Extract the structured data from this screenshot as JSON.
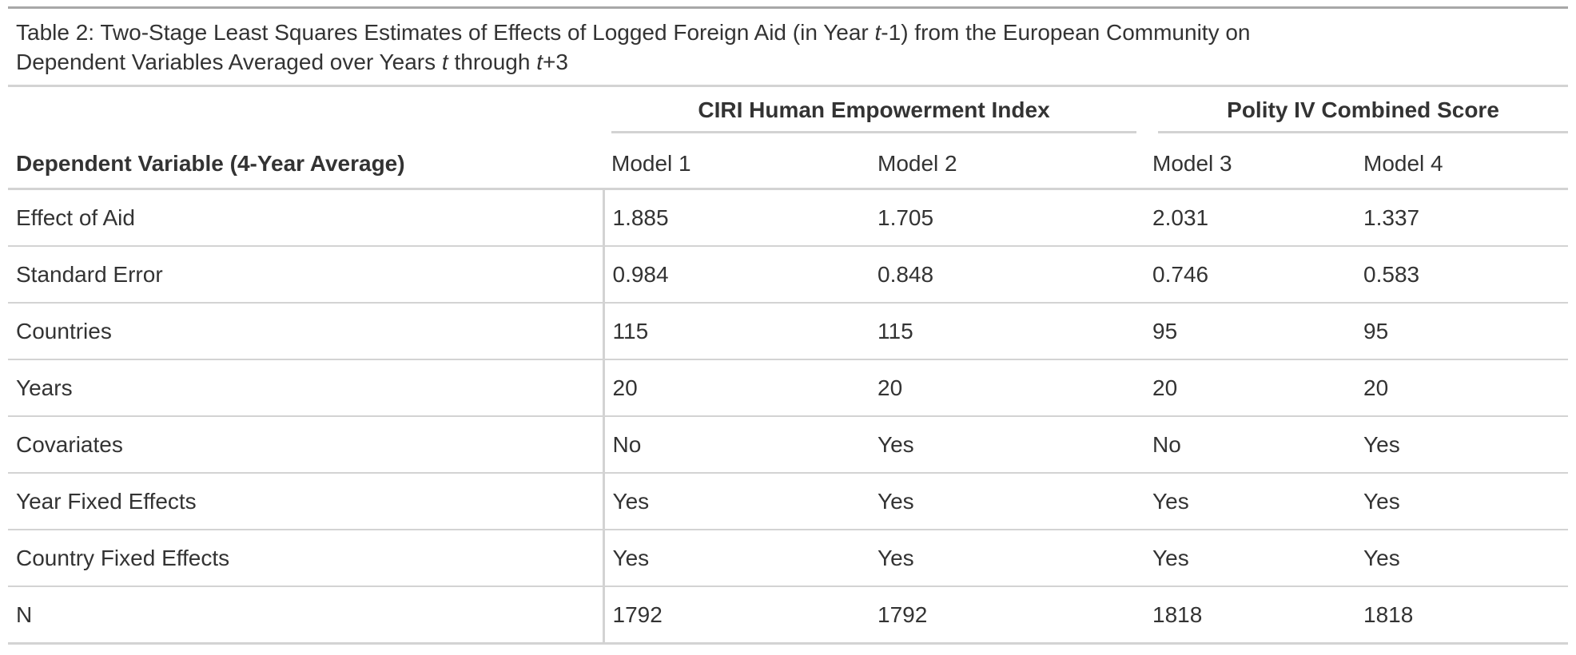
{
  "caption": {
    "prefix": "Table 2: Two-Stage Least Squares Estimates of Effects of Logged Foreign Aid (in Year ",
    "t1": "t",
    "mid1": "-1) from the European Community on",
    "line2_prefix": "Dependent Variables Averaged over Years ",
    "t2": "t",
    "mid2": " through ",
    "t3": "t",
    "suffix": "+3"
  },
  "spanners": [
    {
      "label": "CIRI Human Empowerment Index"
    },
    {
      "label": "Polity IV Combined Score"
    }
  ],
  "columns": {
    "stub_label": "Dependent Variable (4-Year Average)",
    "models": [
      "Model 1",
      "Model 2",
      "Model 3",
      "Model 4"
    ]
  },
  "rows": [
    {
      "label": "Effect of Aid",
      "values": [
        "1.885",
        "1.705",
        "2.031",
        "1.337"
      ]
    },
    {
      "label": "Standard Error",
      "values": [
        "0.984",
        "0.848",
        "0.746",
        "0.583"
      ]
    },
    {
      "label": "Countries",
      "values": [
        "115",
        "115",
        "95",
        "95"
      ]
    },
    {
      "label": "Years",
      "values": [
        "20",
        "20",
        "20",
        "20"
      ]
    },
    {
      "label": "Covariates",
      "values": [
        "No",
        "Yes",
        "No",
        "Yes"
      ]
    },
    {
      "label": "Year Fixed Effects",
      "values": [
        "Yes",
        "Yes",
        "Yes",
        "Yes"
      ]
    },
    {
      "label": "Country Fixed Effects",
      "values": [
        "Yes",
        "Yes",
        "Yes",
        "Yes"
      ]
    },
    {
      "label": "N",
      "values": [
        "1792",
        "1792",
        "1818",
        "1818"
      ]
    }
  ]
}
